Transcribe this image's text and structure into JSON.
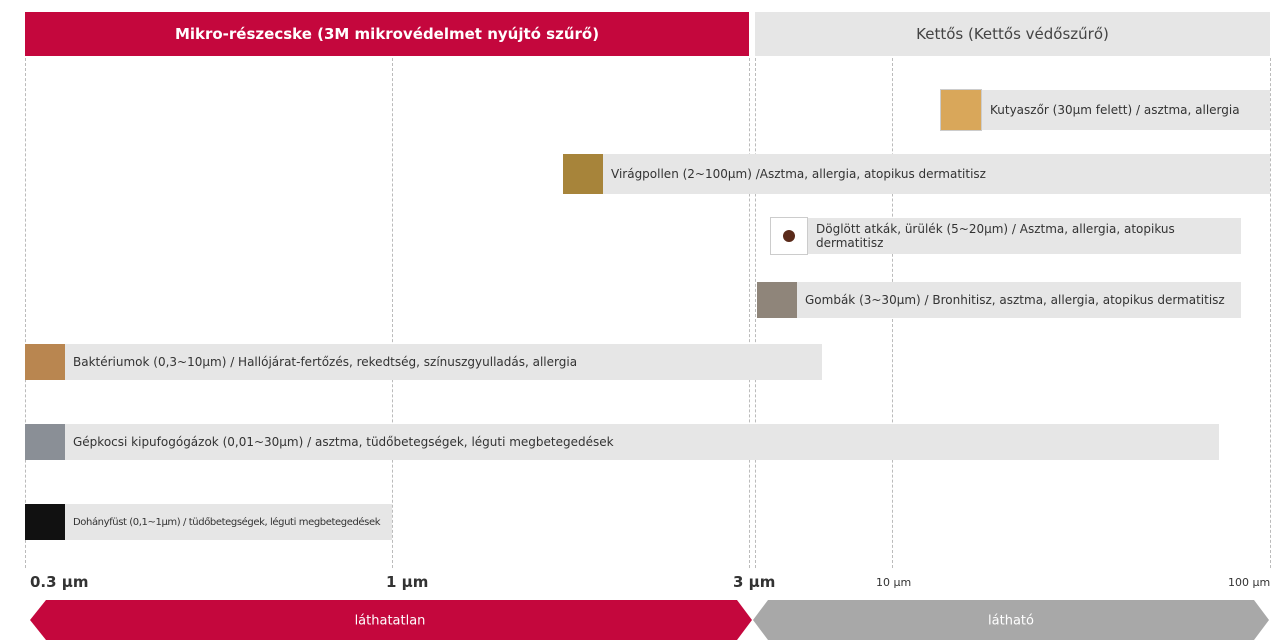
{
  "header": {
    "left": "Mikro-részecske (3M mikrovédelmet nyújtó szűrő)",
    "right": "Kettős (Kettős védőszűrő)"
  },
  "items": [
    {
      "label": "Kutyaszőr (30µm felett) / asztma, allergia"
    },
    {
      "label": "Virágpollen (2~100µm) /Asztma, allergia, atopikus dermatitisz"
    },
    {
      "label": "Döglött atkák, ürülék (5~20µm) / Asztma, allergia, atopikus dermatitisz"
    },
    {
      "label": "Gombák (3~30µm) / Bronhitisz, asztma, allergia, atopikus dermatitisz"
    },
    {
      "label": "Baktériumok (0,3~10µm) / Hallójárat-fertőzés, rekedtség, színuszgyulladás, allergia"
    },
    {
      "label": "Gépkocsi kipufogógázok (0,01~30µm) / asztma, tüdőbetegségek, léguti megbetegedések"
    },
    {
      "label": "Dohányfüst (0,1~1µm) / tüdőbetegségek, léguti megbetegedések"
    }
  ],
  "axis": [
    "0.3 µm",
    "1 µm",
    "3 µm",
    "10 µm",
    "100 µm"
  ],
  "arrows": {
    "left": "láthatatlan",
    "right": "látható"
  }
}
